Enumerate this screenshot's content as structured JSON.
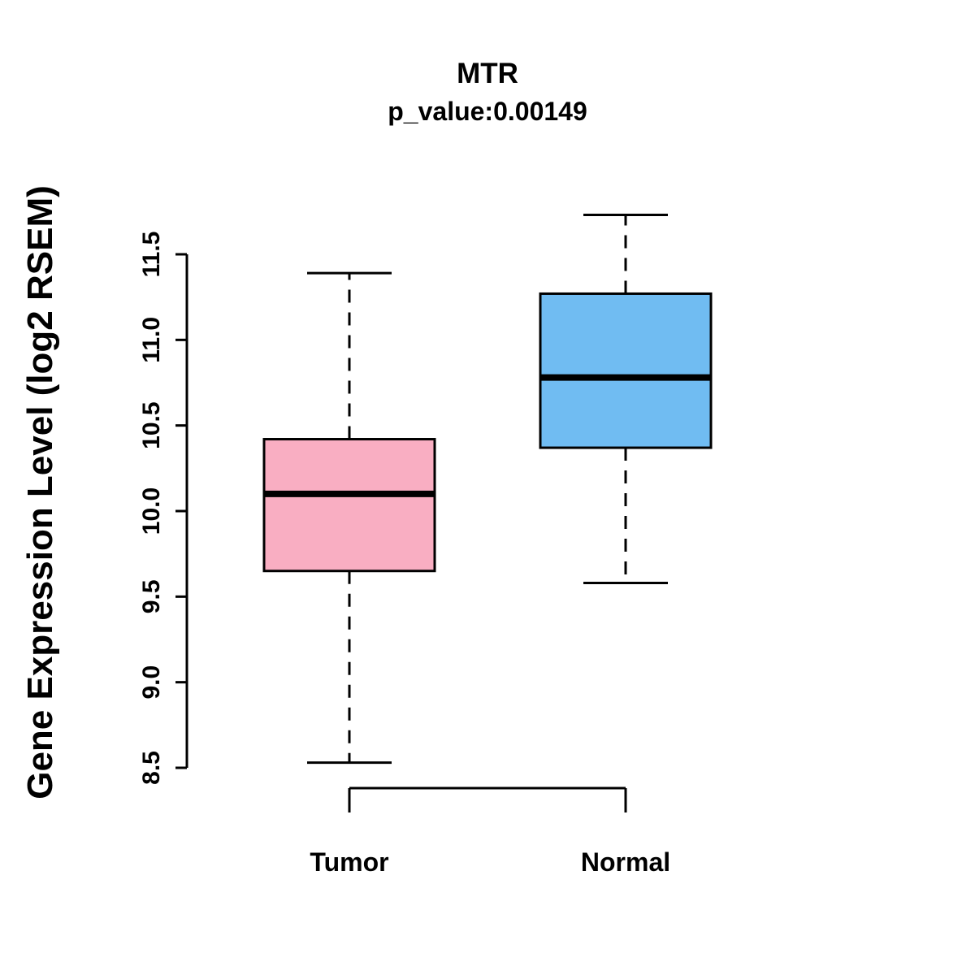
{
  "chart_data": {
    "type": "boxplot",
    "title": "MTR",
    "subtitle": "p_value:0.00149",
    "ylabel": "Gene Expression Level (log2 RSEM)",
    "xlabel": "",
    "categories": [
      "Tumor",
      "Normal"
    ],
    "yticks": [
      8.5,
      9.0,
      9.5,
      10.0,
      10.5,
      11.0,
      11.5
    ],
    "ylim": [
      8.3,
      11.8
    ],
    "grid": false,
    "legend": "none",
    "series": [
      {
        "name": "Tumor",
        "color": "#F9AEC2",
        "lower_whisker": 8.53,
        "q1": 9.65,
        "median": 10.1,
        "q3": 10.42,
        "upper_whisker": 11.39
      },
      {
        "name": "Normal",
        "color": "#70BCF2",
        "lower_whisker": 9.58,
        "q1": 10.37,
        "median": 10.78,
        "q3": 11.27,
        "upper_whisker": 11.73
      }
    ],
    "colors": {
      "axis": "#000000",
      "text": "#000000",
      "tumor_fill": "#F9AEC2",
      "normal_fill": "#70BCF2"
    }
  }
}
